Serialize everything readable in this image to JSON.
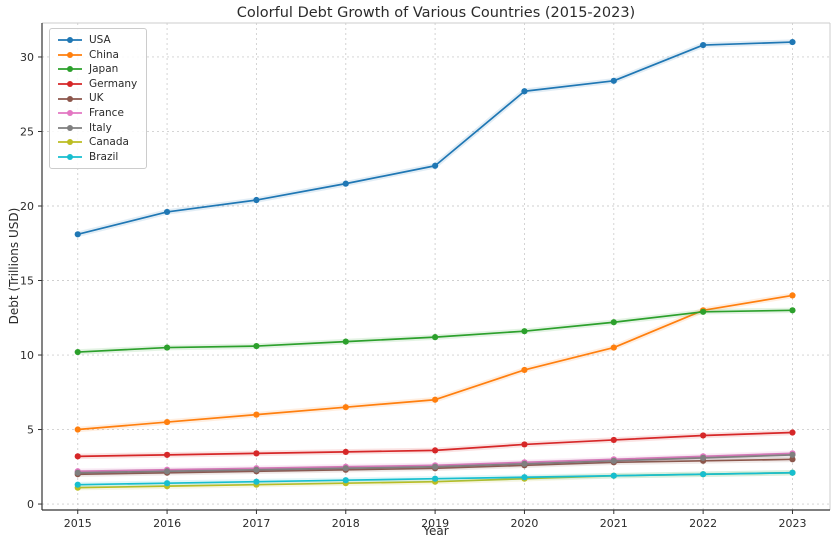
{
  "figure": {
    "background": "#ffffff",
    "grid_color": "#cfcfcf",
    "spine_dark_color": "#333333",
    "spine_light_color": "#cccccc",
    "text_color": "#2b2b2b"
  },
  "chart_data": {
    "type": "line",
    "title": "Colorful Debt Growth of Various Countries (2015-2023)",
    "xlabel": "Year",
    "ylabel": "Debt (Trillions USD)",
    "x": [
      2015,
      2016,
      2017,
      2018,
      2019,
      2020,
      2021,
      2022,
      2023
    ],
    "xticklabels": [
      "2015",
      "2016",
      "2017",
      "2018",
      "2019",
      "2020",
      "2021",
      "2022",
      "2023"
    ],
    "yticks": [
      0,
      5,
      10,
      15,
      20,
      25,
      30
    ],
    "yticklabels": [
      "0",
      "5",
      "10",
      "15",
      "20",
      "25",
      "30"
    ],
    "xlim": [
      2014.6,
      2023.42
    ],
    "ylim": [
      -0.4,
      32.28
    ],
    "grid": true,
    "grid_style": "dotted",
    "legend_position": "upper left",
    "marker": "circle",
    "series": [
      {
        "name": "USA",
        "color": "#1f77b4",
        "values": [
          18.1,
          19.6,
          20.4,
          21.5,
          22.7,
          27.7,
          28.4,
          30.8,
          31.0
        ]
      },
      {
        "name": "China",
        "color": "#ff7f0e",
        "values": [
          5.0,
          5.5,
          6.0,
          6.5,
          7.0,
          9.0,
          10.5,
          13.0,
          14.0
        ]
      },
      {
        "name": "Japan",
        "color": "#2ca02c",
        "values": [
          10.2,
          10.5,
          10.6,
          10.9,
          11.2,
          11.6,
          12.2,
          12.9,
          13.0
        ]
      },
      {
        "name": "Germany",
        "color": "#d62728",
        "values": [
          3.2,
          3.3,
          3.4,
          3.5,
          3.6,
          4.0,
          4.3,
          4.6,
          4.8
        ]
      },
      {
        "name": "UK",
        "color": "#8c564b",
        "values": [
          2.0,
          2.1,
          2.2,
          2.3,
          2.4,
          2.6,
          2.8,
          2.9,
          3.0
        ]
      },
      {
        "name": "France",
        "color": "#e377c2",
        "values": [
          2.2,
          2.3,
          2.4,
          2.5,
          2.6,
          2.8,
          3.0,
          3.2,
          3.4
        ]
      },
      {
        "name": "Italy",
        "color": "#7f7f7f",
        "values": [
          2.1,
          2.2,
          2.3,
          2.4,
          2.5,
          2.7,
          2.9,
          3.1,
          3.3
        ]
      },
      {
        "name": "Canada",
        "color": "#bcbd22",
        "values": [
          1.1,
          1.2,
          1.3,
          1.4,
          1.5,
          1.7,
          1.9,
          2.0,
          2.1
        ]
      },
      {
        "name": "Brazil",
        "color": "#17becf",
        "values": [
          1.3,
          1.4,
          1.5,
          1.6,
          1.7,
          1.8,
          1.9,
          2.0,
          2.1
        ]
      }
    ]
  }
}
